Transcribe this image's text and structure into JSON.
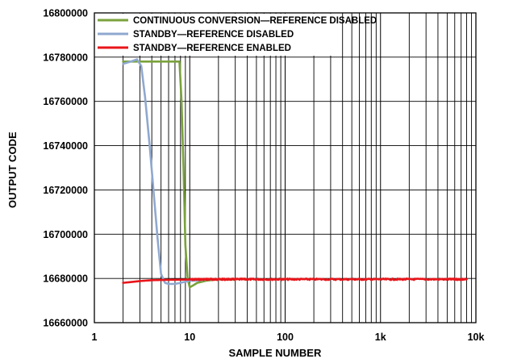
{
  "chart_data": {
    "type": "line",
    "title": "",
    "xlabel": "SAMPLE NUMBER",
    "ylabel": "OUTPUT CODE",
    "x_scale": "log",
    "xlim": [
      1,
      10000
    ],
    "ylim": [
      16660000,
      16800000
    ],
    "x_ticks": [
      1,
      10,
      100,
      1000,
      10000
    ],
    "x_tick_labels": [
      "1",
      "10",
      "100",
      "1k",
      "10k"
    ],
    "y_ticks": [
      16660000,
      16680000,
      16700000,
      16720000,
      16740000,
      16760000,
      16780000,
      16800000
    ],
    "y_tick_labels": [
      "16660000",
      "16680000",
      "16700000",
      "16720000",
      "16740000",
      "16760000",
      "16780000",
      "16800000"
    ],
    "grid": true,
    "legend_position": "top-left",
    "series": [
      {
        "name": "CONTINUOUS CONVERSION—REFERENCE DISABLED",
        "color": "#7aa23c",
        "x": [
          2,
          3,
          5,
          7,
          7.8,
          8.2,
          8.6,
          9,
          9.5,
          10,
          11,
          12,
          15,
          20,
          30
        ],
        "y": [
          16778000,
          16778000,
          16778000,
          16778000,
          16778000,
          16760000,
          16730000,
          16695000,
          16680000,
          16676000,
          16677000,
          16678000,
          16679000,
          16679500,
          16679500
        ]
      },
      {
        "name": "STANDBY—REFERENCE DISABLED",
        "color": "#8fa8cf",
        "x": [
          2,
          2.4,
          2.8,
          3.1,
          3.4,
          3.8,
          4.2,
          4.6,
          5,
          5.5,
          6,
          7,
          8,
          9,
          10,
          12,
          15,
          20
        ],
        "y": [
          16777000,
          16778000,
          16779000,
          16776000,
          16762000,
          16740000,
          16718000,
          16698000,
          16682000,
          16678000,
          16677500,
          16677500,
          16678000,
          16678500,
          16679000,
          16679000,
          16679500,
          16679500
        ]
      },
      {
        "name": "STANDBY—REFERENCE ENABLED",
        "color": "#e8151a",
        "x": [
          2,
          3,
          4,
          5,
          7,
          10,
          15,
          20,
          30,
          50,
          100,
          200,
          500,
          1000,
          2000,
          5000,
          8000
        ],
        "y": [
          16678000,
          16678800,
          16679200,
          16679300,
          16679400,
          16679500,
          16679600,
          16679600,
          16679600,
          16679600,
          16679600,
          16679600,
          16679600,
          16679600,
          16679600,
          16679600,
          16679600
        ]
      }
    ]
  }
}
